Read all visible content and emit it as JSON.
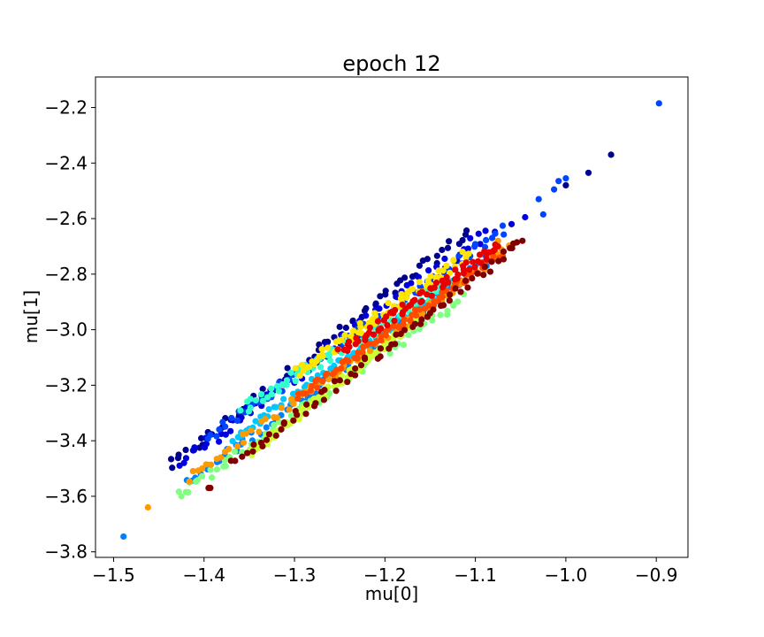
{
  "chart_data": {
    "type": "scatter",
    "title": "epoch 12",
    "xlabel": "mu[0]",
    "ylabel": "mu[1]",
    "xlim": [
      -1.52,
      -0.865
    ],
    "ylim": [
      -3.82,
      -2.09
    ],
    "xticks": [
      -1.5,
      -1.4,
      -1.3,
      -1.2,
      -1.1,
      -1.0,
      -0.9
    ],
    "xtick_labels": [
      "−1.5",
      "−1.4",
      "−1.3",
      "−1.2",
      "−1.1",
      "−1.0",
      "−0.9"
    ],
    "yticks": [
      -3.8,
      -3.6,
      -3.4,
      -3.2,
      -3.0,
      -2.8,
      -2.6,
      -2.4,
      -2.2
    ],
    "ytick_labels": [
      "−3.8",
      "−3.6",
      "−3.4",
      "−3.2",
      "−3.0",
      "−2.8",
      "−2.6",
      "−2.4",
      "−2.2"
    ],
    "grid": false,
    "legend": "none",
    "colormap": "jet",
    "series": [
      {
        "color": "#00008f",
        "segment": [
          -1.44,
          -3.5,
          -1.105,
          -2.64
        ],
        "width": 0.014,
        "points": [
          [
            -0.975,
            -2.435
          ],
          [
            -0.95,
            -2.37
          ],
          [
            -1.0,
            -2.48
          ]
        ]
      },
      {
        "color": "#0000dd",
        "segment": [
          -1.43,
          -3.49,
          -1.08,
          -2.63
        ],
        "width": 0.016,
        "points": [
          [
            -1.045,
            -2.595
          ],
          [
            -1.06,
            -2.62
          ]
        ]
      },
      {
        "color": "#0044ff",
        "segment": [
          -1.4,
          -3.4,
          -1.065,
          -2.63
        ],
        "width": 0.012,
        "points": [
          [
            -0.897,
            -2.185
          ],
          [
            -1.0,
            -2.455
          ],
          [
            -1.008,
            -2.465
          ],
          [
            -1.013,
            -2.495
          ],
          [
            -1.03,
            -2.53
          ],
          [
            -1.025,
            -2.585
          ]
        ]
      },
      {
        "color": "#0080ff",
        "segment": [
          -1.42,
          -3.56,
          -1.075,
          -2.72
        ],
        "width": 0.012,
        "points": [
          [
            -1.489,
            -3.745
          ]
        ]
      },
      {
        "color": "#00c8ff",
        "segment": [
          -1.37,
          -3.4,
          -1.12,
          -2.82
        ],
        "width": 0.01,
        "points": []
      },
      {
        "color": "#33ffcc",
        "segment": [
          -1.36,
          -3.29,
          -1.12,
          -2.81
        ],
        "width": 0.016,
        "points": []
      },
      {
        "color": "#80ff80",
        "segment": [
          -1.43,
          -3.6,
          -1.11,
          -2.88
        ],
        "width": 0.012,
        "points": [
          [
            -1.425,
            -3.6
          ]
        ]
      },
      {
        "color": "#ccff33",
        "segment": [
          -1.35,
          -3.45,
          -1.16,
          -2.95
        ],
        "width": 0.01,
        "points": []
      },
      {
        "color": "#ffe600",
        "segment": [
          -1.3,
          -3.16,
          -1.105,
          -2.72
        ],
        "width": 0.014,
        "points": []
      },
      {
        "color": "#ff9900",
        "segment": [
          -1.42,
          -3.54,
          -1.06,
          -2.7
        ],
        "width": 0.01,
        "points": [
          [
            -1.462,
            -3.64
          ],
          [
            -1.075,
            -2.68
          ],
          [
            -1.078,
            -2.72
          ]
        ]
      },
      {
        "color": "#ff4a00",
        "segment": [
          -1.3,
          -3.25,
          -1.07,
          -2.72
        ],
        "width": 0.01,
        "points": []
      },
      {
        "color": "#e60000",
        "segment": [
          -1.25,
          -3.08,
          -1.075,
          -2.7
        ],
        "width": 0.012,
        "points": [
          [
            -1.075,
            -2.7
          ]
        ]
      },
      {
        "color": "#800000",
        "segment": [
          -1.37,
          -3.49,
          -1.05,
          -2.69
        ],
        "width": 0.012,
        "points": [
          [
            -1.395,
            -3.57
          ],
          [
            -1.393,
            -3.57
          ],
          [
            -1.048,
            -2.68
          ],
          [
            -1.058,
            -2.69
          ]
        ]
      }
    ]
  }
}
